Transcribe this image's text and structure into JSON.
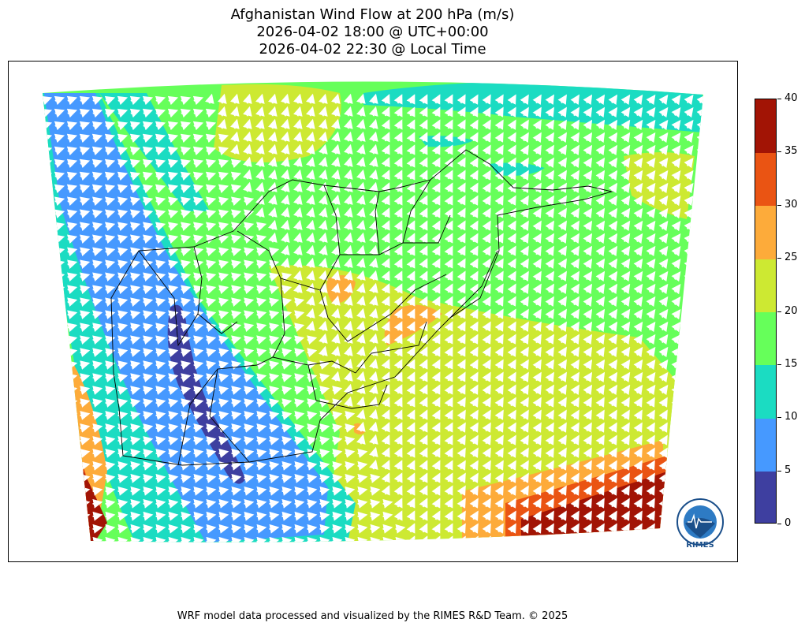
{
  "title": {
    "line1": "Afghanistan Wind Flow at 200 hPa (m/s)",
    "line2": "2026-04-02 18:00 @ UTC+00:00",
    "line3": "2026-04-02 22:30 @ Local Time"
  },
  "colorbar": {
    "ticks": [
      "0",
      "5",
      "10",
      "15",
      "20",
      "25",
      "30",
      "35",
      "40"
    ],
    "colors": [
      "#3e3fa0",
      "#4699ff",
      "#1bdcc2",
      "#66ff5a",
      "#cde932",
      "#fdab3a",
      "#ea5413",
      "#a21405"
    ]
  },
  "logo": {
    "text": "RIMES"
  },
  "footer": "WRF model data processed and visualized by the RIMES R&D Team. © 2025"
}
